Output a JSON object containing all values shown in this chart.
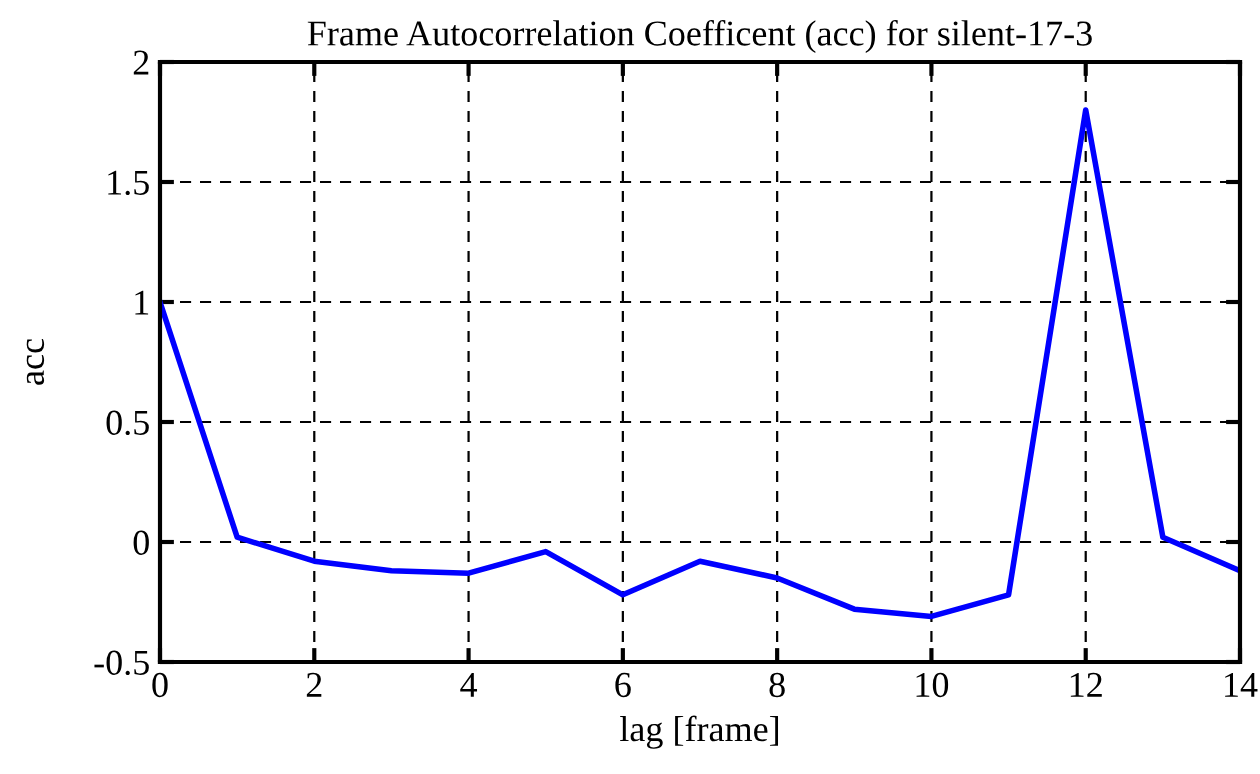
{
  "chart_data": {
    "type": "line",
    "title": "Frame Autocorrelation Coefficent (acc) for silent-17-3",
    "xlabel": "lag [frame]",
    "ylabel": "acc",
    "x": [
      0,
      1,
      2,
      3,
      4,
      5,
      6,
      7,
      8,
      9,
      10,
      11,
      12,
      13,
      14
    ],
    "series": [
      {
        "color": "#0000ff",
        "values": [
          1.0,
          0.02,
          -0.08,
          -0.12,
          -0.13,
          -0.04,
          -0.22,
          -0.08,
          -0.15,
          -0.28,
          -0.31,
          -0.22,
          1.8,
          0.02,
          -0.12
        ]
      }
    ],
    "xlim": [
      0,
      14
    ],
    "xticks": [
      0,
      2,
      4,
      6,
      8,
      10,
      12,
      14
    ],
    "ylim": [
      -0.5,
      2
    ],
    "yticks": [
      -0.5,
      0,
      0.5,
      1,
      1.5,
      2
    ],
    "grid": true,
    "line_style": "solid",
    "marker": "none"
  }
}
